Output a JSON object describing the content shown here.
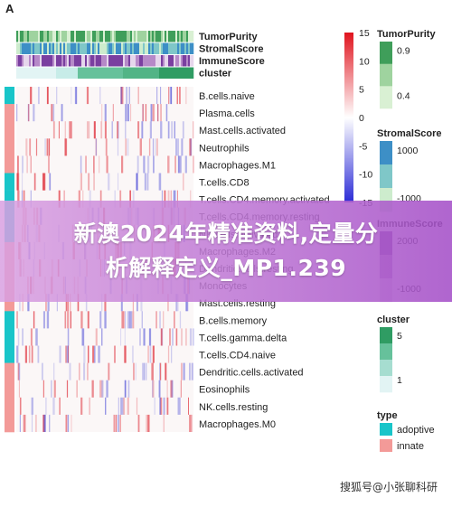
{
  "panel_label": "A",
  "banner": {
    "line1": "新澳2024年精准资料,定量分",
    "line2": "析解释定义_MP1.239"
  },
  "watermark": "搜狐号@小张聊科研",
  "chart_data": {
    "type": "heatmap",
    "annotation_tracks": [
      "TumorPurity",
      "StromalScore",
      "ImmuneScore",
      "cluster"
    ],
    "rows": [
      {
        "label": "B.cells.naive",
        "type": "adoptive"
      },
      {
        "label": "Plasma.cells",
        "type": "innate"
      },
      {
        "label": "Mast.cells.activated",
        "type": "innate"
      },
      {
        "label": "Neutrophils",
        "type": "innate"
      },
      {
        "label": "Macrophages.M1",
        "type": "innate"
      },
      {
        "label": "T.cells.CD8",
        "type": "adoptive"
      },
      {
        "label": "T.cells.CD4.memory.activated",
        "type": "adoptive"
      },
      {
        "label": "T.cells.CD4.memory.resting",
        "type": "adoptive"
      },
      {
        "label": "NK.cells.activated",
        "type": "adoptive"
      },
      {
        "label": "Macrophages.M2",
        "type": "innate"
      },
      {
        "label": "Dendritic.cells.resting",
        "type": "innate"
      },
      {
        "label": "Monocytes",
        "type": "innate"
      },
      {
        "label": "Mast.cells.resting",
        "type": "innate"
      },
      {
        "label": "B.cells.memory",
        "type": "adoptive"
      },
      {
        "label": "T.cells.gamma.delta",
        "type": "adoptive"
      },
      {
        "label": "T.cells.CD4.naive",
        "type": "adoptive"
      },
      {
        "label": "Dendritic.cells.activated",
        "type": "innate"
      },
      {
        "label": "Eosinophils",
        "type": "innate"
      },
      {
        "label": "NK.cells.resting",
        "type": "innate"
      },
      {
        "label": "Macrophages.M0",
        "type": "innate"
      }
    ],
    "clusters": [
      1,
      2,
      3,
      4,
      5
    ],
    "cluster_fractions": [
      0.22,
      0.12,
      0.26,
      0.2,
      0.2
    ],
    "color_scale": {
      "min": -15,
      "max": 15,
      "ticks": [
        15,
        10,
        5,
        0,
        -5,
        -10,
        -15
      ],
      "low_color": "#2b2bd6",
      "mid_color": "#ffffff",
      "high_color": "#e0141e"
    },
    "legends": [
      {
        "title": "TumorPurity",
        "ticks": [
          "0.9",
          "0.4"
        ],
        "colors": [
          "#3f9e5a",
          "#9fd39f",
          "#d9f0d3"
        ]
      },
      {
        "title": "StromalScore",
        "ticks": [
          "1000",
          "-1000"
        ],
        "colors": [
          "#3d8fc6",
          "#7fc7c8",
          "#cdeccd"
        ]
      },
      {
        "title": "ImmuneScore",
        "ticks": [
          "2000",
          "-1000"
        ],
        "colors": [
          "#7a3fa0",
          "#b689c8",
          "#e6d6ec"
        ]
      },
      {
        "title": "cluster",
        "ticks": [
          "5",
          "1"
        ],
        "colors": [
          "#2f9c63",
          "#66c19b",
          "#a6ddd0",
          "#e2f4f4"
        ]
      },
      {
        "title": "type",
        "items": [
          {
            "label": "adoptive",
            "color": "#19c5c9"
          },
          {
            "label": "innate",
            "color": "#f39a98"
          }
        ]
      }
    ]
  }
}
